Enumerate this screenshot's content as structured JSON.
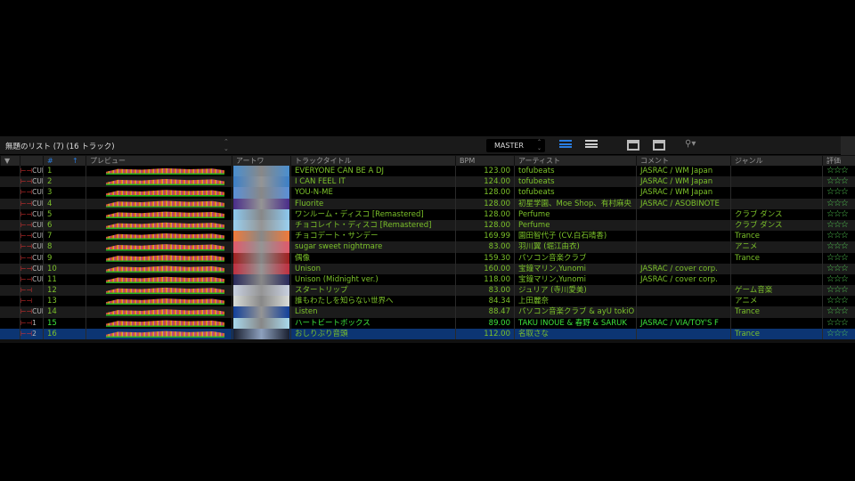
{
  "toolbar": {
    "list_title": "無題のリスト (7) (16 トラック)",
    "deck": "MASTER"
  },
  "columns": {
    "filter": "▼",
    "num": "#",
    "sort": "↑",
    "preview": "プレビュー",
    "artwork": "アートワ",
    "title": "トラックタイトル",
    "bpm": "BPM",
    "artist": "アーティスト",
    "comment": "コメント",
    "genre": "ジャンル",
    "rating": "評価"
  },
  "colors": {
    "text": "#7cc22a",
    "bright": "#3de53d",
    "selected": "#0c3573"
  },
  "rows": [
    {
      "cue": "CUE",
      "num": "1",
      "title": "EVERYONE CAN BE A DJ",
      "bpm": "123.00",
      "artist": "tofubeats",
      "comment": "JASRAC / WM Japan",
      "genre": "",
      "art": "#4a8fd0",
      "stars": "☆☆☆"
    },
    {
      "cue": "CUE",
      "num": "2",
      "title": "I CAN FEEL IT",
      "bpm": "124.00",
      "artist": "tofubeats",
      "comment": "JASRAC / WM Japan",
      "genre": "",
      "art": "#3b7fc8",
      "stars": "☆☆☆"
    },
    {
      "cue": "CUE",
      "num": "3",
      "title": "YOU-N-ME",
      "bpm": "128.00",
      "artist": "tofubeats",
      "comment": "JASRAC / WM Japan",
      "genre": "",
      "art": "#5a90d8",
      "stars": "☆☆☆"
    },
    {
      "cue": "CUE",
      "num": "4",
      "title": "Fluorite",
      "bpm": "128.00",
      "artist": "初星学園、Moe Shop、有村麻央",
      "comment": "JASRAC / ASOBINOTE",
      "genre": "",
      "art": "#4a2d8a",
      "stars": "☆☆☆"
    },
    {
      "cue": "CUE",
      "num": "5",
      "title": "ワンルーム・ディスコ [Remastered]",
      "bpm": "128.00",
      "artist": "Perfume",
      "comment": "",
      "genre": "クラブ ダンス",
      "art": "#8cc8ee",
      "stars": "☆☆☆"
    },
    {
      "cue": "CUE",
      "num": "6",
      "title": "チョコレイト・ディスコ [Remastered]",
      "bpm": "128.00",
      "artist": "Perfume",
      "comment": "",
      "genre": "クラブ ダンス",
      "art": "#9ad0f0",
      "stars": "☆☆☆"
    },
    {
      "cue": "CUE",
      "num": "7",
      "title": "チョコデート・サンデー",
      "bpm": "169.99",
      "artist": "園田智代子 (CV.白石晴香)",
      "comment": "",
      "genre": "Trance",
      "art": "#f07a3a",
      "stars": "☆☆☆"
    },
    {
      "cue": "CUE",
      "num": "8",
      "title": "sugar sweet nightmare",
      "bpm": "83.00",
      "artist": "羽川翼 (堀江由衣)",
      "comment": "",
      "genre": "アニメ",
      "art": "#e05a6a",
      "stars": "☆☆☆"
    },
    {
      "cue": "CUE",
      "num": "9",
      "title": "偶像",
      "bpm": "159.30",
      "artist": "パソコン音楽クラブ",
      "comment": "",
      "genre": "Trance",
      "art": "#a02020",
      "stars": "☆☆☆"
    },
    {
      "cue": "CUE",
      "num": "10",
      "title": "Unison",
      "bpm": "160.00",
      "artist": "宝鐘マリン,Yunomi",
      "comment": "JASRAC / cover corp.",
      "genre": "",
      "art": "#c03040",
      "stars": "☆☆☆"
    },
    {
      "cue": "CUE",
      "num": "11",
      "title": "Unison (Midnight ver.)",
      "bpm": "118.00",
      "artist": "宝鐘マリン,Yunomi",
      "comment": "JASRAC / cover corp.",
      "genre": "",
      "art": "#2a2a5a",
      "stars": "☆☆☆"
    },
    {
      "cue": "",
      "num": "12",
      "title": "スタートリップ",
      "bpm": "83.00",
      "artist": "ジュリア (寺川愛美)",
      "comment": "",
      "genre": "ゲーム音楽",
      "art": "#c8d0e0",
      "stars": "☆☆☆"
    },
    {
      "cue": "",
      "num": "13",
      "title": "誰もわたしを知らない世界へ",
      "bpm": "84.34",
      "artist": "上田麗奈",
      "comment": "",
      "genre": "アニメ",
      "art": "#d8dcd8",
      "stars": "☆☆☆"
    },
    {
      "cue": "CUE",
      "num": "14",
      "title": "Listen",
      "bpm": "88.47",
      "artist": "パソコン音楽クラブ & ayU tokiO",
      "comment": "",
      "genre": "Trance",
      "art": "#12409a",
      "stars": "☆☆☆"
    },
    {
      "cue": "1",
      "num": "15",
      "title": "ハートビートボックス",
      "bpm": "89.00",
      "artist": "TAKU INOUE & 春野 & SARUK",
      "comment": "JASRAC / VIA/TOY'S F",
      "genre": "",
      "art": "#a8d8ec",
      "stars": "☆☆☆",
      "bright": true
    },
    {
      "cue": "2",
      "num": "16",
      "title": "おしりぶり音頭",
      "bpm": "112.00",
      "artist": "名取さな",
      "comment": "",
      "genre": "Trance",
      "art": "#1a2030",
      "stars": "☆☆☆",
      "selected": true
    }
  ]
}
